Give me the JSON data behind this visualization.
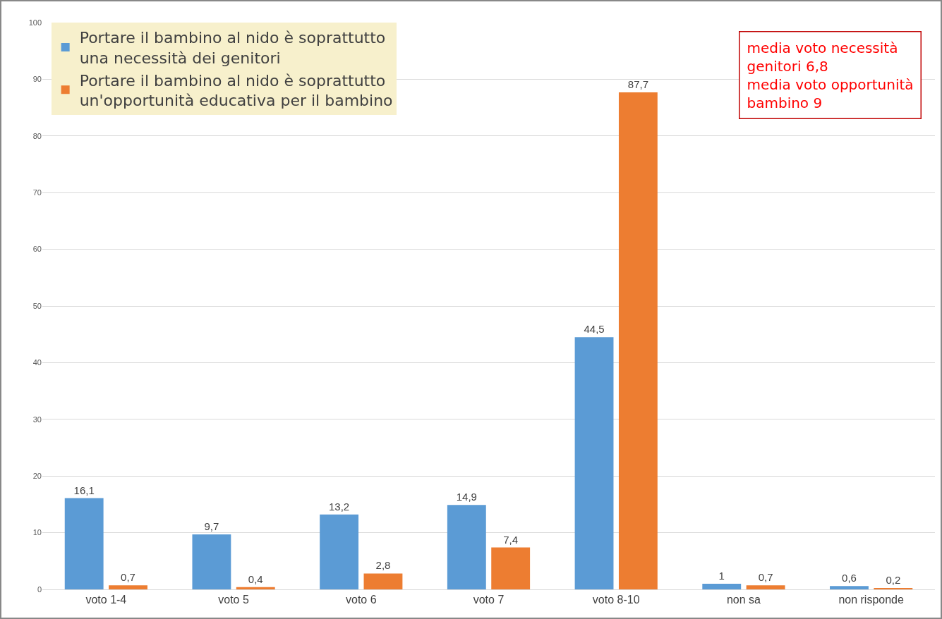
{
  "chart_data": {
    "type": "bar",
    "categories": [
      "voto 1-4",
      "voto 5",
      "voto 6",
      "voto 7",
      "voto 8-10",
      "non sa",
      "non risponde"
    ],
    "series": [
      {
        "name": "Portare il bambino al nido è soprattutto una necessità dei genitori",
        "color": "#5b9bd5",
        "values": [
          16.1,
          9.7,
          13.2,
          14.9,
          44.5,
          1,
          0.6
        ],
        "value_labels": [
          "16,1",
          "9,7",
          "13,2",
          "14,9",
          "44,5",
          "1",
          "0,6"
        ]
      },
      {
        "name": "Portare il bambino al nido è soprattutto un'opportunità educativa per il bambino",
        "color": "#ed7d31",
        "values": [
          0.7,
          0.4,
          2.8,
          7.4,
          87.7,
          0.7,
          0.2
        ],
        "value_labels": [
          "0,7",
          "0,4",
          "2,8",
          "7,4",
          "87,7",
          "0,7",
          "0,2"
        ]
      }
    ],
    "ylim": [
      0,
      100
    ],
    "yticks": [
      0,
      10,
      20,
      30,
      40,
      50,
      60,
      70,
      80,
      90,
      100
    ],
    "grid": "y",
    "legend": "top left",
    "annotations": [
      "media voto necessità genitori 6,8",
      "media voto opportunità bambino 9"
    ]
  }
}
